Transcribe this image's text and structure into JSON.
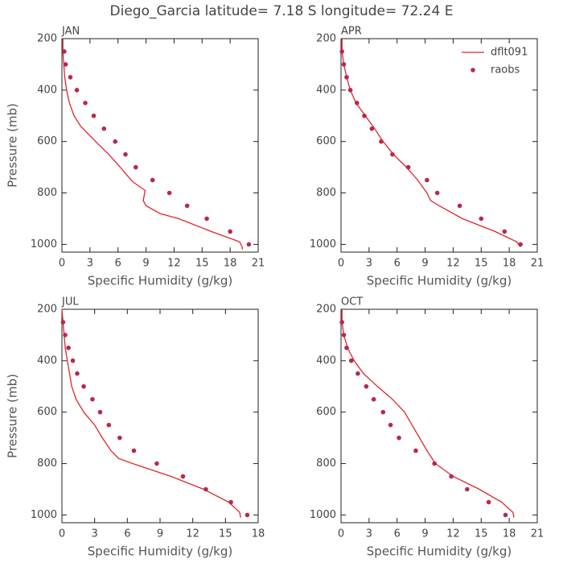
{
  "title": "Diego_Garcia  latitude= 7.18 S longitude= 72.24 E",
  "chart_data": [
    {
      "type": "line",
      "title": "JAN",
      "xlabel": "Specific Humidity (g/kg)",
      "ylabel": "Pressure (mb)",
      "xlim": [
        0,
        21
      ],
      "xticks": [
        0,
        3,
        6,
        9,
        12,
        15,
        18,
        21
      ],
      "ylim": [
        1030,
        200
      ],
      "yticks": [
        200,
        400,
        600,
        800,
        1000
      ],
      "series": [
        {
          "style": "line",
          "color": "#e0262a",
          "x": [
            0.1,
            0.1,
            0.2,
            0.3,
            0.5,
            0.8,
            1.3,
            2.0,
            3.6,
            5.0,
            6.0,
            7.4,
            7.7,
            8.9,
            8.7,
            9.0,
            10.5,
            12.5,
            16.0,
            19.0,
            19.3,
            19.3
          ],
          "values": [
            200,
            250,
            300,
            350,
            400,
            450,
            500,
            540,
            600,
            650,
            690,
            750,
            760,
            790,
            830,
            850,
            880,
            900,
            950,
            990,
            1010,
            1020
          ]
        },
        {
          "style": "markers",
          "color": "#b8284f",
          "x": [
            0.25,
            0.4,
            0.9,
            1.6,
            2.5,
            3.4,
            4.5,
            5.7,
            6.8,
            7.9,
            9.7,
            11.5,
            13.4,
            15.5,
            18.0,
            20.0
          ],
          "values": [
            250,
            300,
            350,
            400,
            450,
            500,
            550,
            600,
            650,
            700,
            750,
            800,
            850,
            900,
            950,
            1000
          ]
        }
      ]
    },
    {
      "type": "line",
      "title": "APR",
      "xlabel": "Specific Humidity (g/kg)",
      "xlim": [
        0,
        21
      ],
      "xticks": [
        0,
        3,
        6,
        9,
        12,
        15,
        18,
        21
      ],
      "ylim": [
        1030,
        200
      ],
      "yticks": [
        200,
        400,
        600,
        800,
        1000
      ],
      "legend": "upper right",
      "series": [
        {
          "name": "dflt091",
          "style": "line",
          "color": "#e0262a",
          "x": [
            0.1,
            0.1,
            0.3,
            0.6,
            1.0,
            1.6,
            2.6,
            3.6,
            4.5,
            5.6,
            7.0,
            8.2,
            9.2,
            9.6,
            10.5,
            13.0,
            16.5,
            18.8,
            19.2
          ],
          "values": [
            200,
            250,
            300,
            350,
            400,
            450,
            500,
            550,
            600,
            650,
            700,
            750,
            800,
            830,
            850,
            900,
            950,
            990,
            1010
          ]
        },
        {
          "name": "raobs",
          "style": "markers",
          "color": "#b8284f",
          "x": [
            0.1,
            0.3,
            0.6,
            1.0,
            1.7,
            2.5,
            3.3,
            4.3,
            5.5,
            7.2,
            9.2,
            10.3,
            12.7,
            15.0,
            17.5,
            19.2
          ],
          "values": [
            250,
            300,
            350,
            400,
            450,
            500,
            550,
            600,
            650,
            700,
            750,
            800,
            850,
            900,
            950,
            1000
          ]
        }
      ]
    },
    {
      "type": "line",
      "title": "JUL",
      "xlabel": "Specific Humidity (g/kg)",
      "ylabel": "Pressure (mb)",
      "xlim": [
        0,
        18
      ],
      "xticks": [
        0,
        3,
        6,
        9,
        12,
        15,
        18
      ],
      "ylim": [
        1030,
        200
      ],
      "yticks": [
        200,
        400,
        600,
        800,
        1000
      ],
      "series": [
        {
          "style": "line",
          "color": "#e0262a",
          "x": [
            0,
            0.1,
            0.2,
            0.3,
            0.5,
            0.7,
            0.9,
            1.3,
            2.0,
            3.0,
            3.7,
            4.5,
            5.2,
            6.5,
            10.0,
            13.0,
            15.3,
            16.3,
            16.4
          ],
          "values": [
            200,
            250,
            300,
            350,
            400,
            450,
            500,
            550,
            600,
            650,
            700,
            750,
            780,
            800,
            850,
            900,
            950,
            990,
            1010
          ]
        },
        {
          "style": "markers",
          "color": "#b8284f",
          "x": [
            0.1,
            0.3,
            0.6,
            1.0,
            1.4,
            2.0,
            2.8,
            3.5,
            4.3,
            5.3,
            6.6,
            8.7,
            11.1,
            13.2,
            15.5,
            17.0
          ],
          "values": [
            250,
            300,
            350,
            400,
            450,
            500,
            550,
            600,
            650,
            700,
            750,
            800,
            850,
            900,
            950,
            1000
          ]
        }
      ]
    },
    {
      "type": "line",
      "title": "OCT",
      "xlabel": "Specific Humidity (g/kg)",
      "xlim": [
        0,
        21
      ],
      "xticks": [
        0,
        3,
        6,
        9,
        12,
        15,
        18,
        21
      ],
      "ylim": [
        1030,
        200
      ],
      "yticks": [
        200,
        400,
        600,
        800,
        1000
      ],
      "series": [
        {
          "style": "line",
          "color": "#e0262a",
          "x": [
            0.1,
            0.1,
            0.3,
            0.7,
            1.4,
            2.4,
            3.9,
            5.5,
            6.8,
            7.6,
            8.4,
            9.2,
            10.1,
            12.0,
            14.8,
            17.2,
            18.4,
            18.5
          ],
          "values": [
            200,
            250,
            300,
            350,
            400,
            450,
            500,
            550,
            600,
            650,
            700,
            750,
            800,
            850,
            900,
            950,
            990,
            1010
          ]
        },
        {
          "style": "markers",
          "color": "#b8284f",
          "x": [
            0.1,
            0.3,
            0.6,
            1.1,
            1.8,
            2.7,
            3.5,
            4.5,
            5.3,
            6.2,
            8.0,
            10.0,
            11.8,
            13.5,
            15.8,
            17.6
          ],
          "values": [
            250,
            300,
            350,
            400,
            450,
            500,
            550,
            600,
            650,
            700,
            750,
            800,
            850,
            900,
            950,
            1000
          ]
        }
      ]
    }
  ]
}
